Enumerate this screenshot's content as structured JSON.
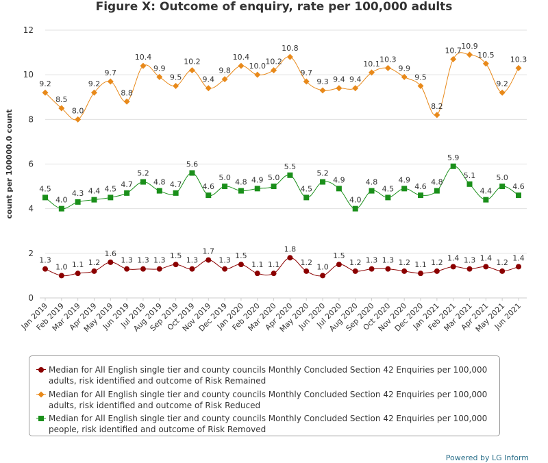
{
  "title": "Figure X: Outcome of enquiry, rate per 100,000 adults",
  "credit": "Powered by LG Inform",
  "chart_data": {
    "type": "line",
    "title": "Figure X: Outcome of enquiry, rate per 100,000 adults",
    "xlabel": "",
    "ylabel": "count per 100000.0 count",
    "ylim": [
      0,
      12
    ],
    "yticks": [
      0,
      2,
      4,
      6,
      8,
      10,
      12
    ],
    "grid": true,
    "legend_position": "bottom",
    "categories": [
      "Jan 2019",
      "Feb 2019",
      "Mar 2019",
      "Apr 2019",
      "May 2019",
      "Jun 2019",
      "Jul 2019",
      "Aug 2019",
      "Sep 2019",
      "Oct 2019",
      "Nov 2019",
      "Dec 2019",
      "Jan 2020",
      "Feb 2020",
      "Mar 2020",
      "Apr 2020",
      "May 2020",
      "Jun 2020",
      "Jul 2020",
      "Aug 2020",
      "Sep 2020",
      "Oct 2020",
      "Nov 2020",
      "Dec 2020",
      "Jan 2021",
      "Feb 2021",
      "Mar 2021",
      "Apr 2021",
      "May 2021",
      "Jun 2021"
    ],
    "series": [
      {
        "name": "Median for All English single tier and county councils Monthly Concluded Section 42 Enquiries per 100,000 adults, risk identified and outcome of Risk Remained",
        "color": "#8b0000",
        "marker": "circle",
        "values": [
          1.3,
          1.0,
          1.1,
          1.2,
          1.6,
          1.3,
          1.3,
          1.3,
          1.5,
          1.3,
          1.7,
          1.3,
          1.5,
          1.1,
          1.1,
          1.8,
          1.2,
          1.0,
          1.5,
          1.2,
          1.3,
          1.3,
          1.2,
          1.1,
          1.2,
          1.4,
          1.3,
          1.4,
          1.2,
          1.4
        ]
      },
      {
        "name": "Median for All English single tier and county councils Monthly Concluded Section 42 Enquiries per 100,000 adults, risk identified and outcome of Risk Reduced",
        "color": "#e8891a",
        "marker": "diamond",
        "values": [
          9.2,
          8.5,
          8.0,
          9.2,
          9.7,
          8.8,
          10.4,
          9.9,
          9.5,
          10.2,
          9.4,
          9.8,
          10.4,
          10.0,
          10.2,
          10.8,
          9.7,
          9.3,
          9.4,
          9.4,
          10.1,
          10.3,
          9.9,
          9.5,
          8.2,
          10.7,
          10.9,
          10.5,
          9.2,
          10.3
        ]
      },
      {
        "name": "Median for All English single tier and county councils Monthly Concluded Section 42 Enquiries per 100,000 people, risk identified and outcome of Risk Removed",
        "color": "#1a8f1a",
        "marker": "square",
        "values": [
          4.5,
          4.0,
          4.3,
          4.4,
          4.5,
          4.7,
          5.2,
          4.8,
          4.7,
          5.6,
          4.6,
          5.0,
          4.8,
          4.9,
          5.0,
          5.5,
          4.5,
          5.2,
          4.9,
          4.0,
          4.8,
          4.5,
          4.9,
          4.6,
          4.8,
          5.9,
          5.1,
          4.4,
          5.0,
          4.6
        ]
      }
    ]
  }
}
